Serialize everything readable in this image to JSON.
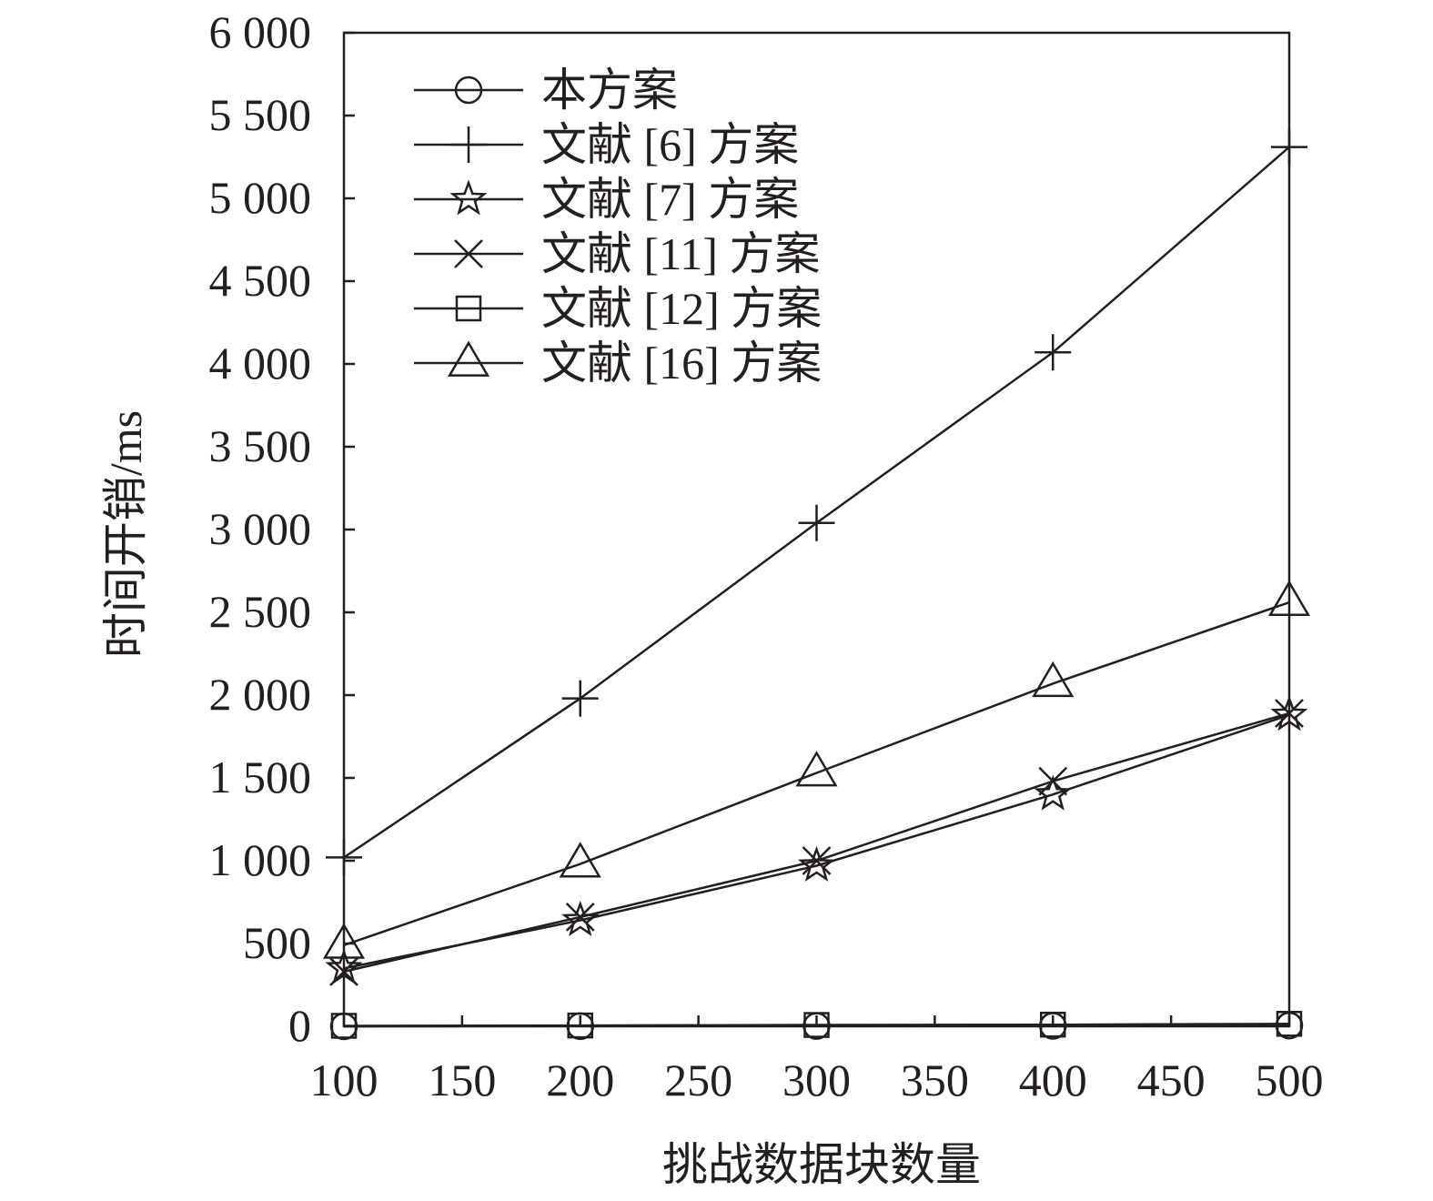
{
  "chart_data": {
    "type": "line",
    "xlabel": "挑战数据块数量",
    "ylabel": "时间开销/ms",
    "xlim": [
      100,
      500
    ],
    "ylim": [
      0,
      6000
    ],
    "x_ticks": [
      100,
      150,
      200,
      250,
      300,
      350,
      400,
      450,
      500
    ],
    "x_tick_labels": [
      "100",
      "150",
      "200",
      "250",
      "300",
      "350",
      "400",
      "450",
      "500"
    ],
    "y_ticks": [
      0,
      500,
      1000,
      1500,
      2000,
      2500,
      3000,
      3500,
      4000,
      4500,
      5000,
      5500,
      6000
    ],
    "y_tick_labels": [
      "0",
      "500",
      "1 000",
      "1 500",
      "2 000",
      "2 500",
      "3 000",
      "3 500",
      "4 000",
      "4 500",
      "5 000",
      "5 500",
      "6 000"
    ],
    "grid": false,
    "legend_position": "top-left",
    "x": [
      100,
      200,
      300,
      400,
      500
    ],
    "series": [
      {
        "name": "本方案",
        "marker": "circle",
        "values": [
          0,
          1,
          2,
          3,
          5
        ]
      },
      {
        "name": "文献 [6] 方案",
        "marker": "plus",
        "values": [
          1020,
          1980,
          3040,
          4070,
          5310
        ]
      },
      {
        "name": "文献 [7] 方案",
        "marker": "star",
        "values": [
          350,
          640,
          970,
          1400,
          1880
        ]
      },
      {
        "name": "文献 [11] 方案",
        "marker": "x",
        "values": [
          330,
          660,
          1000,
          1480,
          1890
        ]
      },
      {
        "name": "文献 [12] 方案",
        "marker": "square",
        "values": [
          3,
          5,
          8,
          10,
          15
        ]
      },
      {
        "name": "文献 [16] 方案",
        "marker": "triangle",
        "values": [
          490,
          980,
          1530,
          2070,
          2560
        ]
      }
    ]
  }
}
